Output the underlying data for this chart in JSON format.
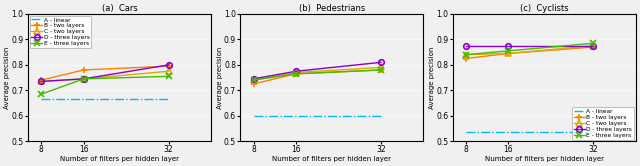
{
  "x": [
    8,
    16,
    32
  ],
  "subplots": [
    {
      "title": "(a)  Cars",
      "series": [
        {
          "label": "A - linear",
          "style": "dashdot",
          "color": "#00BBEE",
          "marker": null,
          "values": [
            0.665,
            0.665,
            0.665
          ],
          "filled": false
        },
        {
          "label": "B - two layers",
          "style": "solid",
          "color": "#FF8000",
          "marker": "+",
          "values": [
            0.74,
            0.78,
            0.795
          ],
          "filled": false
        },
        {
          "label": "C - two layers",
          "style": "solid",
          "color": "#DDAA00",
          "marker": "^",
          "values": [
            0.735,
            0.745,
            0.775
          ],
          "filled": false
        },
        {
          "label": "D - three layers",
          "style": "solid",
          "color": "#8800CC",
          "marker": "o",
          "values": [
            0.735,
            0.745,
            0.8
          ],
          "filled": false
        },
        {
          "label": "E - three layers",
          "style": "solid",
          "color": "#44BB00",
          "marker": "x",
          "values": [
            0.685,
            0.745,
            0.755
          ],
          "filled": false
        }
      ],
      "ylim": [
        0.5,
        1.0
      ],
      "yticks": [
        0.5,
        0.6,
        0.7,
        0.8,
        0.9,
        1.0
      ],
      "ylabel": "Average precision",
      "legend": true,
      "legend_loc": "upper left"
    },
    {
      "title": "(b)  Pedestrians",
      "series": [
        {
          "label": "A - linear",
          "style": "dashdot",
          "color": "#00BBEE",
          "marker": null,
          "values": [
            0.6,
            0.6,
            0.6
          ],
          "filled": false
        },
        {
          "label": "B - two layers",
          "style": "solid",
          "color": "#FF8000",
          "marker": "+",
          "values": [
            0.725,
            0.765,
            0.78
          ],
          "filled": false
        },
        {
          "label": "C - two layers",
          "style": "solid",
          "color": "#DDAA00",
          "marker": "^",
          "values": [
            0.74,
            0.77,
            0.79
          ],
          "filled": false
        },
        {
          "label": "D - three layers",
          "style": "solid",
          "color": "#8800CC",
          "marker": "o",
          "values": [
            0.745,
            0.775,
            0.81
          ],
          "filled": false
        },
        {
          "label": "E - three layers",
          "style": "solid",
          "color": "#44BB00",
          "marker": "x",
          "values": [
            0.74,
            0.765,
            0.78
          ],
          "filled": false
        }
      ],
      "ylim": [
        0.5,
        1.0
      ],
      "yticks": [
        0.5,
        0.6,
        0.7,
        0.8,
        0.9,
        1.0
      ],
      "ylabel": "Average precision",
      "legend": false,
      "legend_loc": "upper left"
    },
    {
      "title": "(c)  Cyclists",
      "series": [
        {
          "label": "A - linear",
          "style": "dashdot",
          "color": "#00BBEE",
          "marker": null,
          "values": [
            0.535,
            0.535,
            0.535
          ],
          "filled": false
        },
        {
          "label": "B - two layers",
          "style": "solid",
          "color": "#FF8000",
          "marker": "+",
          "values": [
            0.825,
            0.845,
            0.87
          ],
          "filled": false
        },
        {
          "label": "C - two layers",
          "style": "solid",
          "color": "#DDAA00",
          "marker": "^",
          "values": [
            0.84,
            0.845,
            0.875
          ],
          "filled": false
        },
        {
          "label": "D - three layers",
          "style": "solid",
          "color": "#8800CC",
          "marker": "o",
          "values": [
            0.875,
            0.875,
            0.875
          ],
          "filled": false
        },
        {
          "label": "E - three layers",
          "style": "solid",
          "color": "#44BB00",
          "marker": "x",
          "values": [
            0.84,
            0.855,
            0.885
          ],
          "filled": false
        }
      ],
      "ylim": [
        0.5,
        1.0
      ],
      "yticks": [
        0.5,
        0.6,
        0.7,
        0.8,
        0.9,
        1.0
      ],
      "ylabel": "Average precision",
      "legend": true,
      "legend_loc": "lower right"
    }
  ],
  "xlabel": "Number of filters per hidden layer",
  "xticks": [
    8,
    16,
    32
  ],
  "xlim": [
    5.5,
    40
  ],
  "bg_color": "#F0F0F0"
}
